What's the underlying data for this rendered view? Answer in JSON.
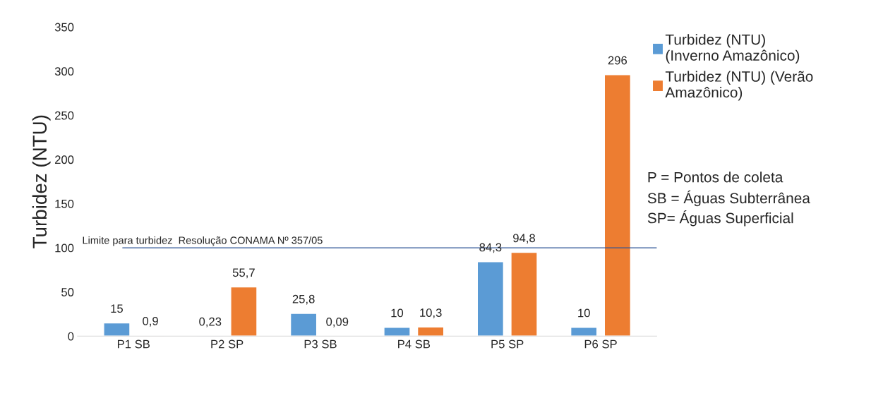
{
  "chart_data": {
    "type": "bar",
    "ylabel": "Turbidez (NTU)",
    "categories": [
      "P1 SB",
      "P2 SP",
      "P3 SB",
      "P4 SB",
      "P5 SP",
      "P6 SP"
    ],
    "series": [
      {
        "name": "Turbidez (NTU)\n(Inverno Amazônico)",
        "color": "#5b9bd5",
        "values": [
          15,
          0.23,
          25.8,
          10,
          84.3,
          10
        ],
        "value_labels": [
          "15",
          "0,23",
          "25,8",
          "10",
          "84,3",
          "10"
        ]
      },
      {
        "name": "Turbidez (NTU) (Verão\nAmazônico)",
        "color": "#ed7d31",
        "values": [
          0.9,
          55.7,
          0.09,
          10.3,
          94.8,
          296
        ],
        "value_labels": [
          "0,9",
          "55,7",
          "0,09",
          "10,3",
          "94,8",
          "296"
        ]
      }
    ],
    "ylim": [
      0,
      350
    ],
    "yticks": [
      0,
      50,
      100,
      150,
      200,
      250,
      300,
      350
    ],
    "ref_lines": [
      {
        "axis": "y",
        "value": 100,
        "label": "Limite para turbidez  Resolução CONAMA Nº 357/05",
        "color": "#2f5597"
      }
    ],
    "grid": false,
    "legend": "right",
    "annotations": [
      "P = Pontos de coleta",
      "SB = Águas Subterrânea",
      "SP= Águas Superficial"
    ]
  }
}
